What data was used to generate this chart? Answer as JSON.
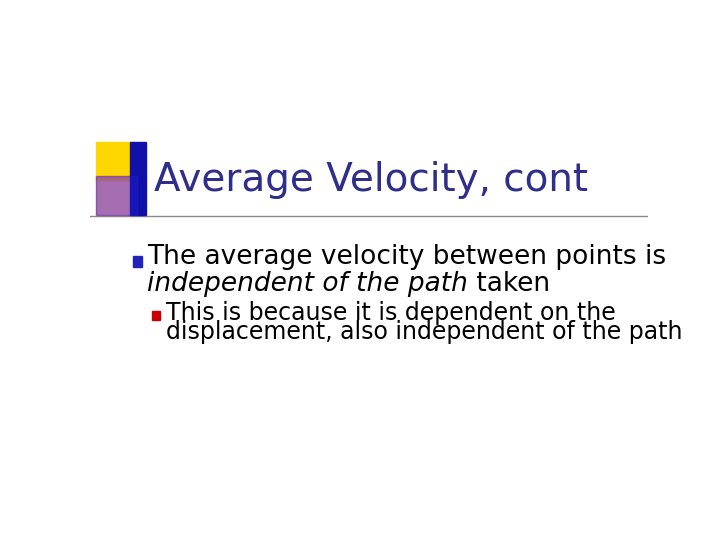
{
  "title": "Average Velocity, cont",
  "title_color": "#2E2E8B",
  "title_fontsize": 28,
  "background_color": "#FFFFFF",
  "bullet1_text_part1": "The average velocity between points is ",
  "bullet1_text_italic": "independent of the path",
  "bullet1_text_part2": " taken",
  "bullet1_color": "#000000",
  "bullet1_fontsize": 19,
  "bullet1_marker_color": "#2222BB",
  "bullet2_line1": "This is because it is dependent on the",
  "bullet2_line2": "displacement, also independent of the path",
  "bullet2_color": "#000000",
  "bullet2_fontsize": 17,
  "bullet2_marker_color": "#CC0000",
  "divider_color": "#888888",
  "corner_yellow": "#FFD700",
  "corner_blue_rect": "#1111AA",
  "corner_red": "#FF7777",
  "corner_blue_bar": "#2222CC"
}
